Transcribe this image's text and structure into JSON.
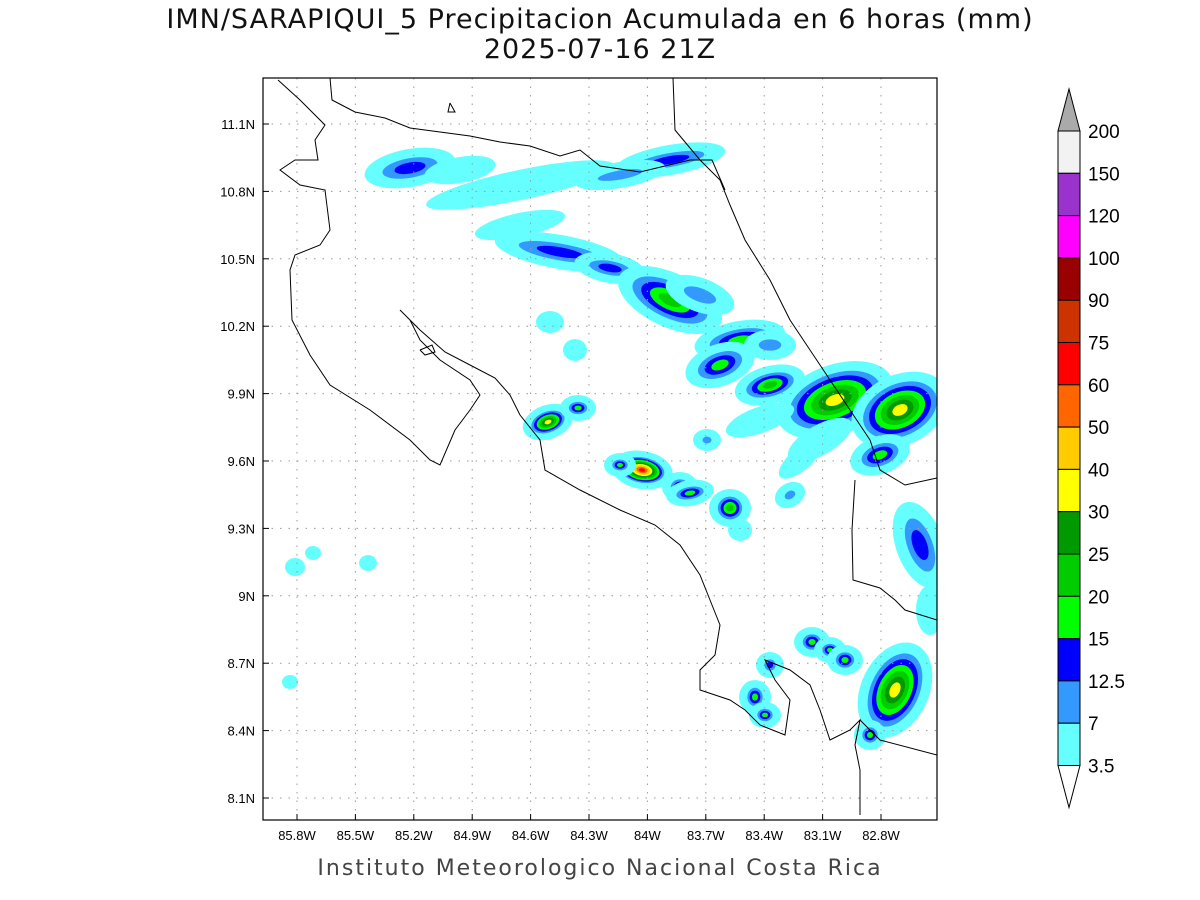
{
  "title": "IMN/SARAPIQUI_5 Precipitacion Acumulada en 6 horas (mm)",
  "subtitle": "2025-07-16 21Z",
  "footer": "Instituto Meteorologico Nacional Costa Rica",
  "map": {
    "lon_ticks": [
      "85.8W",
      "85.5W",
      "85.2W",
      "84.9W",
      "84.6W",
      "84.3W",
      "84W",
      "83.7W",
      "83.4W",
      "83.1W",
      "82.8W"
    ],
    "lat_ticks": [
      "11.1N",
      "10.8N",
      "10.5N",
      "10.2N",
      "9.9N",
      "9.6N",
      "9.3N",
      "9N",
      "8.7N",
      "8.4N",
      "8.1N"
    ],
    "grid": true
  },
  "colorbar": {
    "labels": [
      "3.5",
      "7",
      "12.5",
      "15",
      "20",
      "25",
      "30",
      "40",
      "50",
      "60",
      "75",
      "90",
      "100",
      "120",
      "150",
      "200"
    ],
    "colors": [
      "#66ffff",
      "#3399ff",
      "#0000ff",
      "#00ff00",
      "#00cc00",
      "#009900",
      "#ffff00",
      "#ffcc00",
      "#ff6600",
      "#ff0000",
      "#cc3300",
      "#990000",
      "#ff00ff",
      "#9933cc",
      "#f2f2f2"
    ],
    "over_color": "#aaaaaa",
    "under_color": "#ffffff"
  }
}
